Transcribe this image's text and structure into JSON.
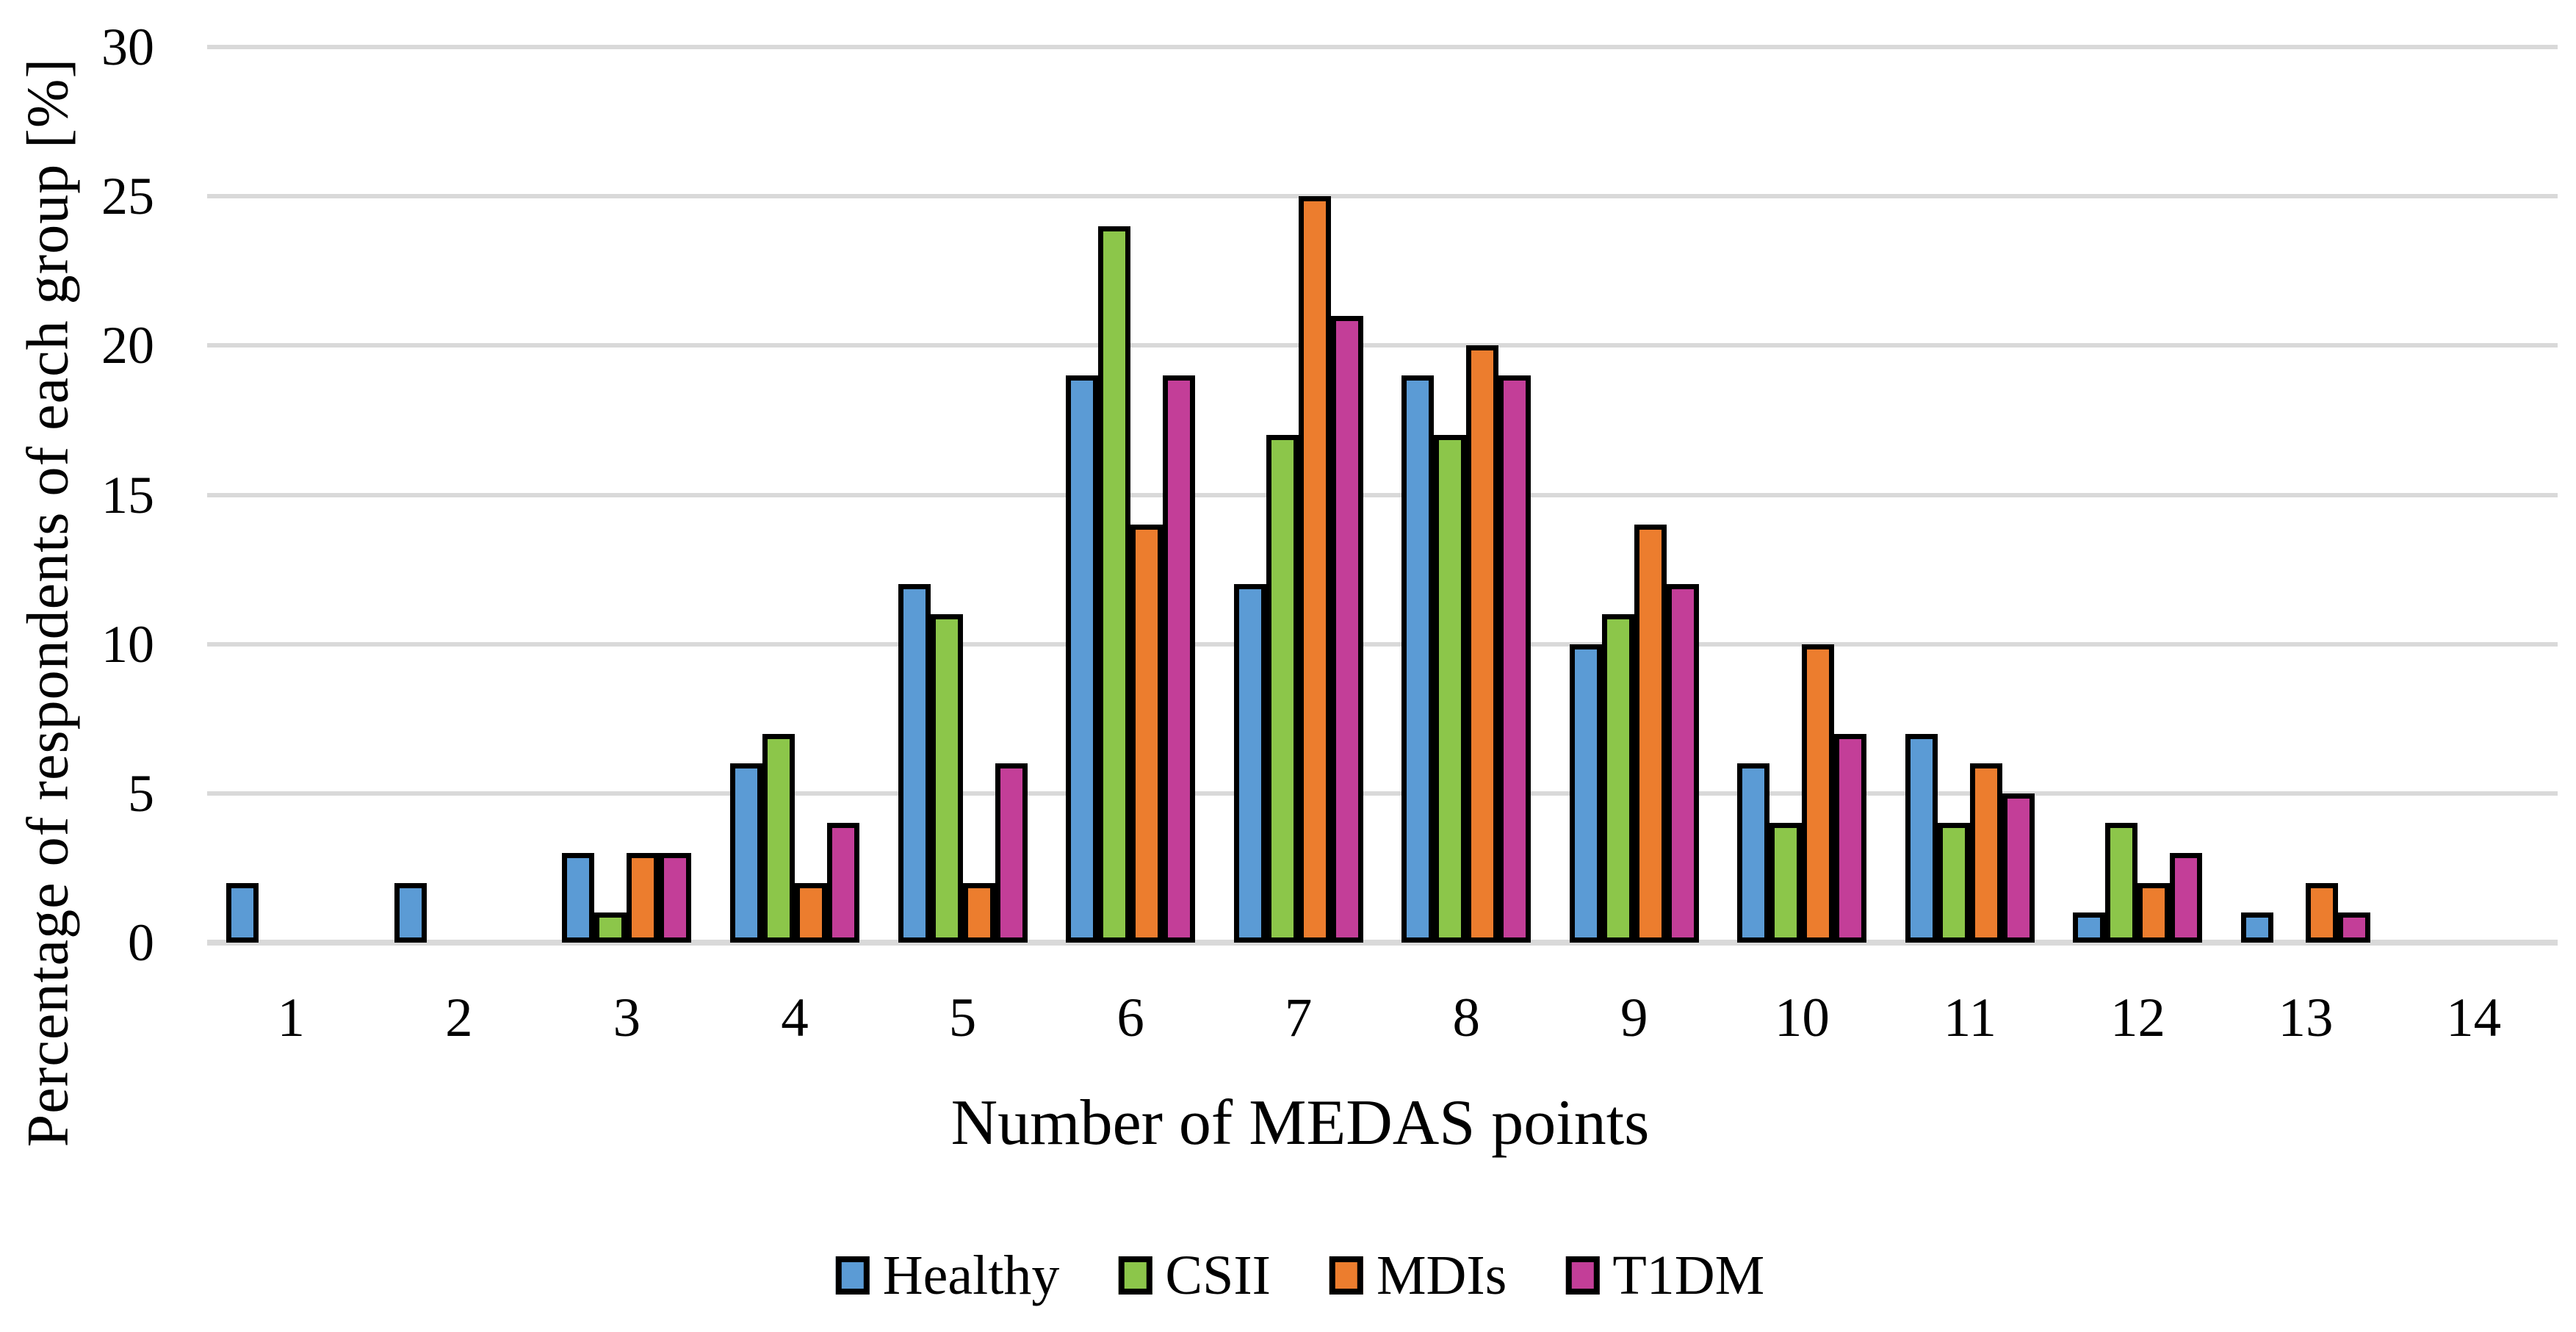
{
  "figure": {
    "background": "#FFFFFF",
    "text_color": "#000000",
    "gridline_color": "#D9D9D9",
    "bar_border_color": "#000000"
  },
  "chart_data": {
    "type": "bar",
    "title": "",
    "xlabel": "Number of MEDAS points",
    "ylabel": "Percentage of respondents of each group [%]",
    "categories": [
      "1",
      "2",
      "3",
      "4",
      "5",
      "6",
      "7",
      "8",
      "9",
      "10",
      "11",
      "12",
      "13",
      "14"
    ],
    "series": [
      {
        "name": "Healthy",
        "color": "#5B9BD5",
        "values": [
          2,
          2,
          3,
          6,
          12,
          19,
          12,
          19,
          10,
          6,
          7,
          1,
          1,
          0
        ]
      },
      {
        "name": "CSII",
        "color": "#8CC64A",
        "values": [
          0,
          0,
          1,
          7,
          11,
          24,
          17,
          17,
          11,
          4,
          4,
          4,
          0,
          0
        ]
      },
      {
        "name": "MDIs",
        "color": "#EC7D2E",
        "values": [
          0,
          0,
          3,
          2,
          2,
          14,
          25,
          20,
          14,
          10,
          6,
          2,
          2,
          0
        ]
      },
      {
        "name": "T1DM",
        "color": "#C33E98",
        "values": [
          0,
          0,
          3,
          4,
          6,
          19,
          21,
          19,
          12,
          7,
          5,
          3,
          1,
          0
        ]
      }
    ],
    "ylim": [
      0,
      30
    ],
    "yticks": [
      0,
      5,
      10,
      15,
      20,
      25,
      30
    ],
    "grid": true,
    "legend_position": "bottom"
  }
}
